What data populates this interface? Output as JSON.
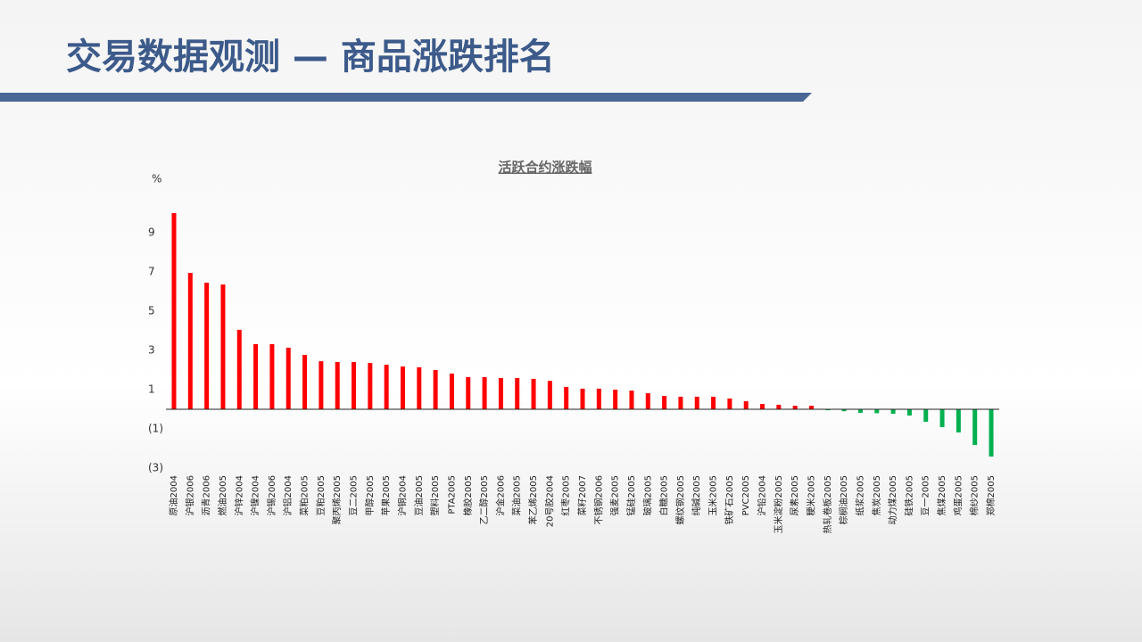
{
  "header": {
    "title": "交易数据观测 — 商品涨跌排名"
  },
  "chart_data": {
    "type": "bar",
    "title": "活跃合约涨跌幅",
    "y_label": "%",
    "categories": [
      "原油2004",
      "沪银2006",
      "沥青2006",
      "燃油2005",
      "沪锌2004",
      "沪镍2004",
      "沪锡2006",
      "沪铝2004",
      "菜粕2005",
      "豆粕2005",
      "聚丙烯2005",
      "豆二2005",
      "甲醇2005",
      "苹果2005",
      "沪铜2004",
      "豆油2005",
      "塑料2005",
      "PTA2005",
      "橡胶2005",
      "乙二醇2005",
      "沪金2006",
      "菜油2005",
      "苯乙烯2005",
      "20号胶2004",
      "红枣2005",
      "菜籽2007",
      "不锈钢2006",
      "强麦2005",
      "锰硅2005",
      "玻璃2005",
      "白糖2005",
      "螺纹钢2005",
      "纯碱2005",
      "玉米2005",
      "铁矿石2005",
      "PVC2005",
      "沪铅2004",
      "玉米淀粉2005",
      "尿素2005",
      "粳米2005",
      "热轧卷板2005",
      "棕榈油2005",
      "纸浆2005",
      "焦炭2005",
      "动力煤2005",
      "硅铁2005",
      "豆一2005",
      "焦煤2005",
      "鸡蛋2005",
      "棉纱2005",
      "郑棉2005"
    ],
    "values": [
      10.0,
      6.95,
      6.45,
      6.36,
      4.05,
      3.32,
      3.32,
      3.14,
      2.77,
      2.45,
      2.41,
      2.41,
      2.36,
      2.27,
      2.18,
      2.14,
      2.0,
      1.82,
      1.64,
      1.64,
      1.59,
      1.59,
      1.55,
      1.45,
      1.14,
      1.05,
      1.05,
      1.0,
      0.95,
      0.82,
      0.68,
      0.64,
      0.64,
      0.64,
      0.55,
      0.41,
      0.27,
      0.23,
      0.18,
      0.18,
      -0.05,
      -0.1,
      -0.18,
      -0.2,
      -0.23,
      -0.32,
      -0.64,
      -0.91,
      -1.18,
      -1.82,
      -2.41
    ],
    "positive_color": "#ff0000",
    "negative_color": "#00b050",
    "ylim": [
      -3,
      10
    ],
    "yticks": [
      {
        "value": -3,
        "label": "(3)"
      },
      {
        "value": -1,
        "label": "(1)"
      },
      1,
      3,
      5,
      7,
      9
    ],
    "grid": false
  }
}
